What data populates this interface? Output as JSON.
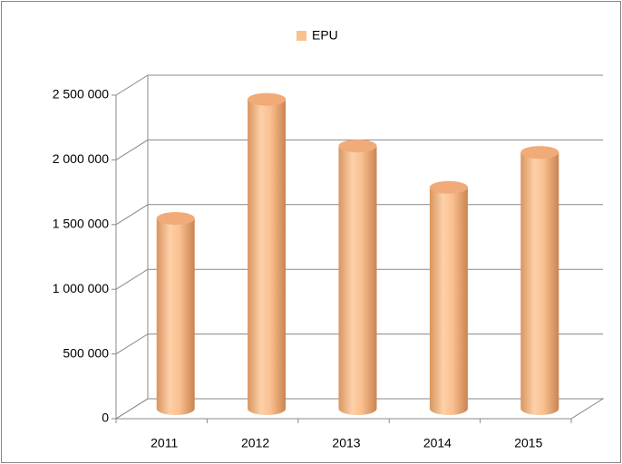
{
  "chart_data": {
    "type": "bar",
    "categories": [
      "2011",
      "2012",
      "2013",
      "2014",
      "2015"
    ],
    "series": [
      {
        "name": "EPU",
        "color": "#fac090",
        "values": [
          1470000,
          2390000,
          2030000,
          1710000,
          1980000
        ]
      }
    ],
    "ylim": [
      0,
      2500000
    ],
    "yticks": [
      0,
      {
        "value": 500000,
        "label": "500 000"
      },
      {
        "value": 1000000,
        "label": "1 000 000"
      },
      {
        "value": 1500000,
        "label": "1 500 000"
      },
      {
        "value": 2000000,
        "label": "2 000 000"
      },
      {
        "value": 2500000,
        "label": "2 500 000"
      }
    ],
    "grid": true,
    "legend": "top"
  }
}
